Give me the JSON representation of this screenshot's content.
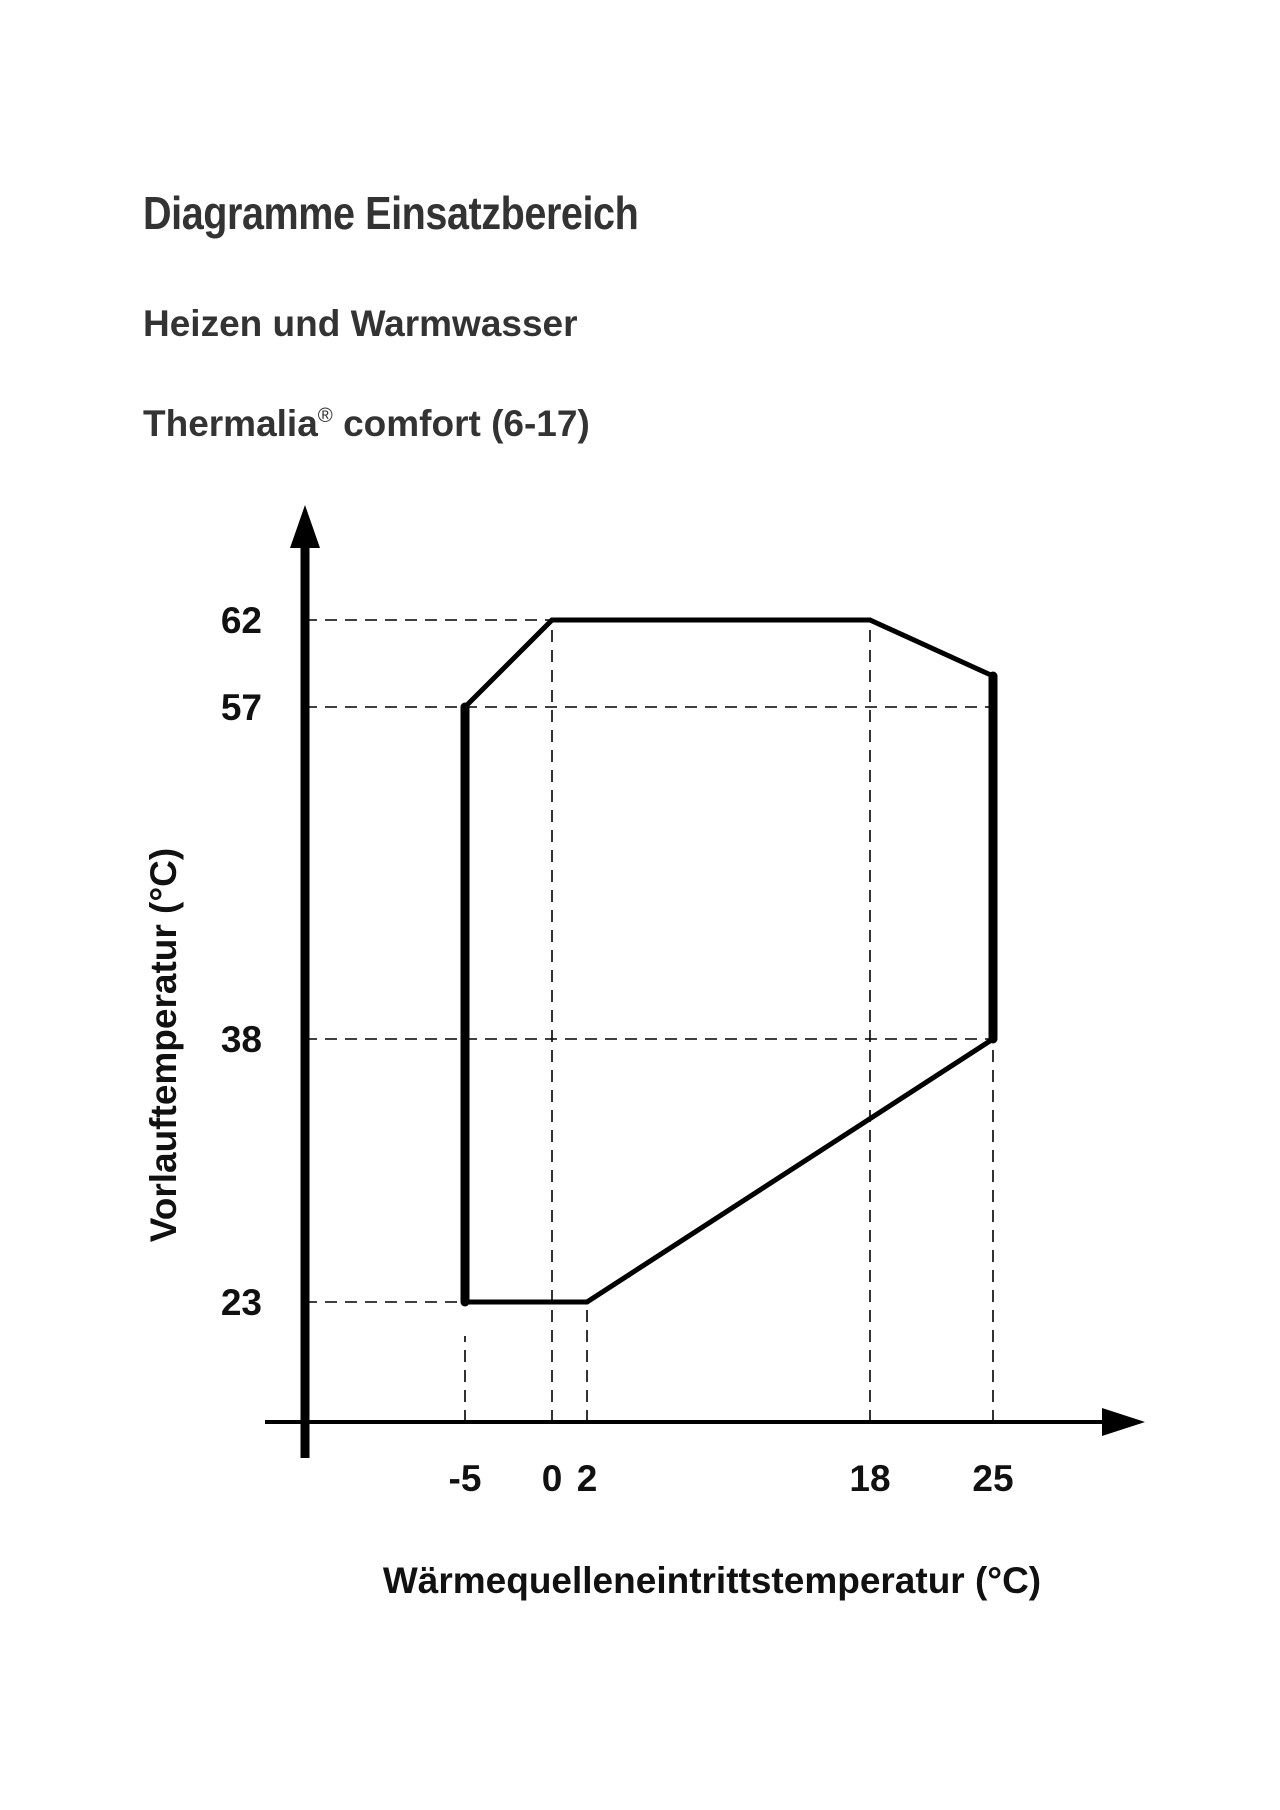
{
  "header": {
    "title": "Diagramme Einsatzbereich",
    "subtitle": "Heizen und Warmwasser",
    "model_name": "Thermalia",
    "model_mark": "®",
    "model_suffix": " comfort (6-17)"
  },
  "chart_data": {
    "type": "area",
    "xlabel": "Wärmequelleneintrittstemperatur (°C)",
    "ylabel": "Vorlauftemperatur (°C)",
    "x_ticks": [
      -5,
      0,
      2,
      18,
      25
    ],
    "y_ticks": [
      23,
      38,
      57,
      62
    ],
    "series": [
      {
        "points": [
          {
            "x": -5,
            "y": 23
          },
          {
            "x": -5,
            "y": 57
          },
          {
            "x": 0,
            "y": 62
          },
          {
            "x": 18,
            "y": 62
          },
          {
            "x": 25,
            "y": 59
          },
          {
            "x": 25,
            "y": 38
          },
          {
            "x": 2,
            "y": 23
          }
        ]
      }
    ],
    "gridlines": "dashed reference lines at tick values",
    "colors": {
      "outline": "#000000",
      "guides": "#000000"
    }
  }
}
